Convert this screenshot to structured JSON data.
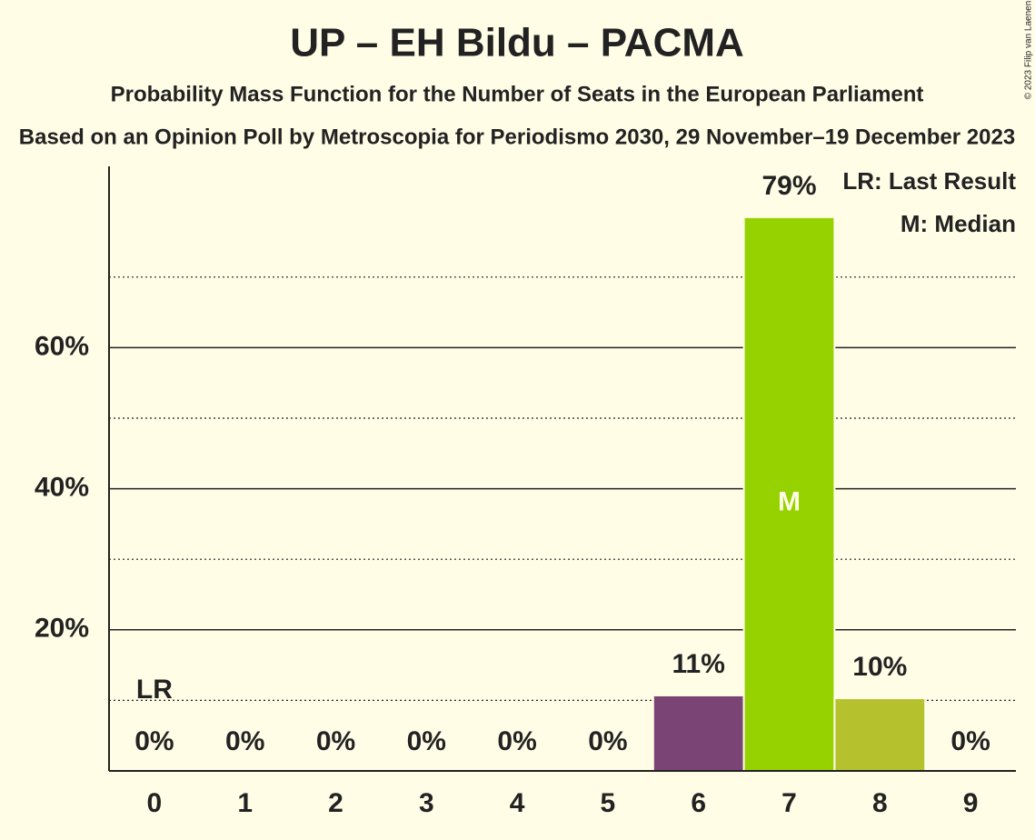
{
  "chart_data": {
    "type": "bar",
    "title": "UP – EH Bildu – PACMA",
    "subtitle": "Probability Mass Function for the Number of Seats in the European Parliament",
    "subtitle2": "Based on an Opinion Poll by Metroscopia for Periodismo 2030, 29 November–19 December 2023",
    "copyright": "© 2023 Filip van Laenen",
    "categories": [
      "0",
      "1",
      "2",
      "3",
      "4",
      "5",
      "6",
      "7",
      "8",
      "9"
    ],
    "values": [
      0,
      0,
      0,
      0,
      0,
      0,
      10.7,
      78.5,
      10.3,
      0
    ],
    "value_labels": [
      "0%",
      "0%",
      "0%",
      "0%",
      "0%",
      "0%",
      "11%",
      "79%",
      "10%",
      "0%"
    ],
    "colors": [
      null,
      null,
      null,
      null,
      null,
      null,
      "#7a4474",
      "#96d100",
      "#b5c22e",
      null
    ],
    "ylim": [
      0,
      85.7
    ],
    "yticks": [
      {
        "value": 20,
        "label": "20%"
      },
      {
        "value": 40,
        "label": "40%"
      },
      {
        "value": 60,
        "label": "60%"
      }
    ],
    "minor_yticks": [
      10,
      30,
      50,
      70
    ],
    "grid": true,
    "annotations": [
      {
        "at": 0,
        "text": "LR"
      },
      {
        "at": 7,
        "text": "M"
      }
    ],
    "legend": [
      "LR: Last Result",
      "M: Median"
    ]
  }
}
